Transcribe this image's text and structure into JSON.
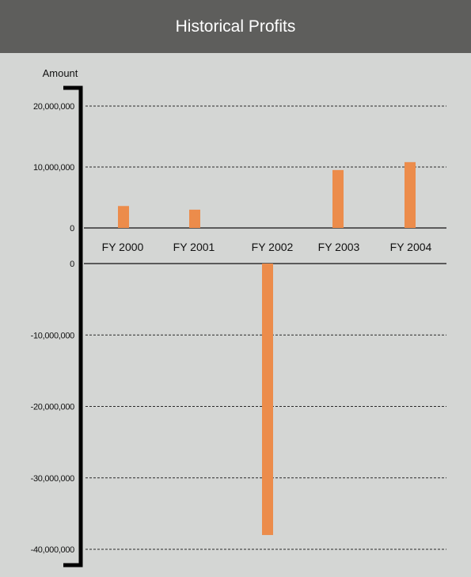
{
  "chart_data": {
    "type": "bar",
    "title": "Historical Profits",
    "ylabel": "Amount",
    "xlabel": "",
    "categories": [
      "FY 2000",
      "FY 2001",
      "FY 2002",
      "FY 2003",
      "FY 2004"
    ],
    "values": [
      3600000,
      3000000,
      -38000000,
      9500000,
      10800000
    ],
    "positive_axis": {
      "ylim": [
        0,
        20000000
      ],
      "ticks": [
        0,
        10000000,
        20000000
      ],
      "tick_labels": [
        "0",
        "10,000,000",
        "20,000,000"
      ]
    },
    "negative_axis": {
      "ylim": [
        -40000000,
        0
      ],
      "ticks": [
        0,
        -10000000,
        -20000000,
        -30000000,
        -40000000
      ],
      "tick_labels": [
        "0",
        "-10,000,000",
        "-20,000,000",
        "-30,000,000",
        "-40,000,000"
      ]
    },
    "grid": true,
    "bar_color": "#ec8c4b",
    "title_bar_color": "#5e5e5c",
    "background_color": "#d4d6d4"
  }
}
